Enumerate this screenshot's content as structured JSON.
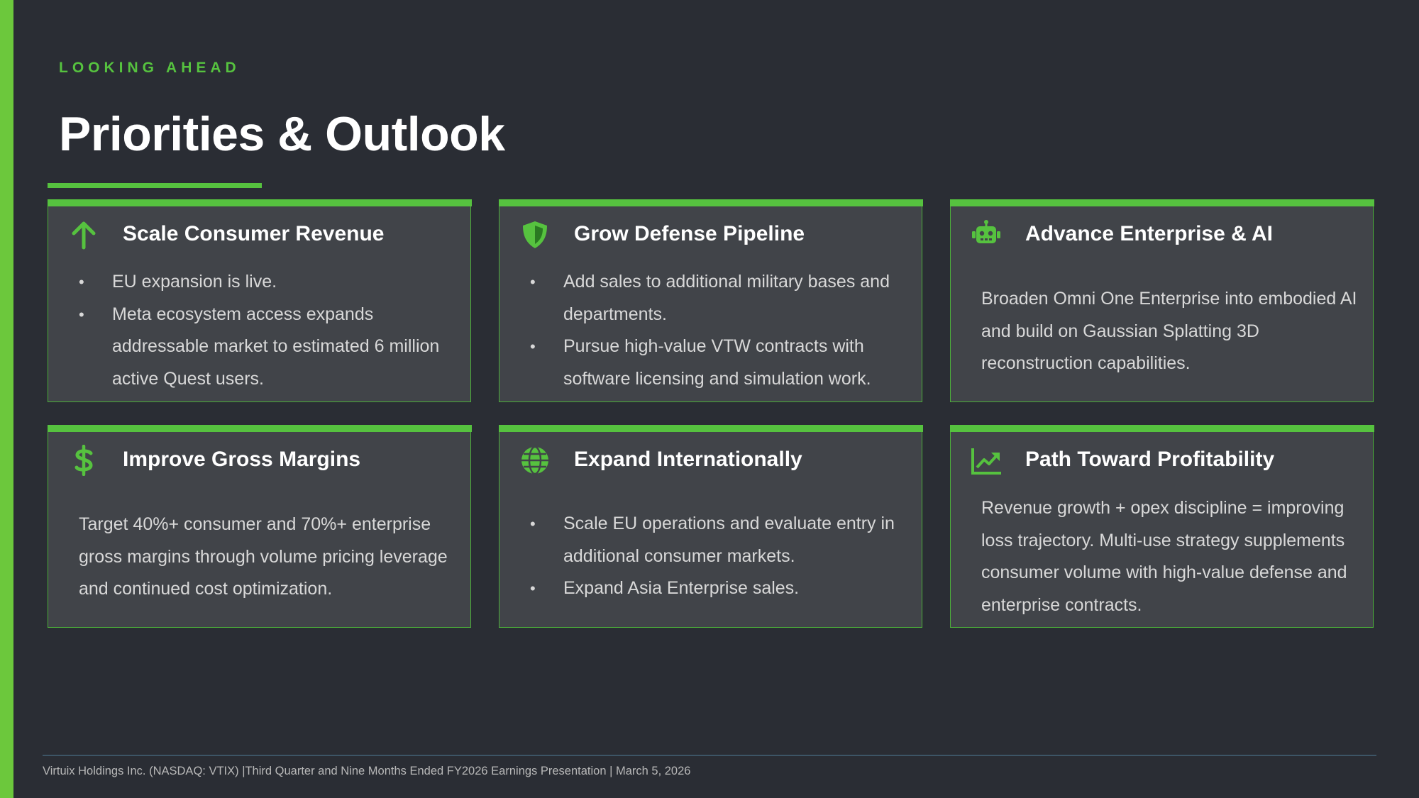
{
  "header": {
    "kicker": "LOOKING AHEAD",
    "title": "Priorities & Outlook"
  },
  "colors": {
    "background": "#2a2d34",
    "accent": "#56c23f",
    "card": "#414449"
  },
  "cards": [
    {
      "icon": "arrow-up-icon",
      "title": "Scale Consumer Revenue",
      "bullets": [
        "EU expansion is live.",
        "Meta ecosystem access expands addressable market to estimated 6 million active Quest users."
      ]
    },
    {
      "icon": "shield-icon",
      "title": "Grow Defense Pipeline",
      "bullets": [
        "Add sales to additional military bases and departments.",
        "Pursue high-value VTW contracts with software licensing and simulation work."
      ]
    },
    {
      "icon": "robot-icon",
      "title": "Advance Enterprise & AI",
      "text": "Broaden Omni One Enterprise into embodied AI and build on Gaussian Splatting 3D reconstruction capabilities."
    },
    {
      "icon": "dollar-icon",
      "title": "Improve Gross Margins",
      "text": "Target 40%+ consumer and 70%+ enterprise gross margins through volume pricing leverage and continued cost optimization."
    },
    {
      "icon": "globe-icon",
      "title": "Expand Internationally",
      "bullets": [
        "Scale EU operations and evaluate entry in additional consumer markets.",
        "Expand Asia Enterprise sales."
      ]
    },
    {
      "icon": "chart-line-up-icon",
      "title": "Path Toward Profitability",
      "text": "Revenue growth + opex discipline = improving loss trajectory. Multi-use strategy supplements consumer volume with high-value defense and enterprise contracts."
    }
  ],
  "footer": {
    "text": "Virtuix Holdings Inc. (NASDAQ: VTIX) |Third Quarter and  Nine Months Ended FY2026 Earnings Presentation  |  March 5, 2026"
  }
}
